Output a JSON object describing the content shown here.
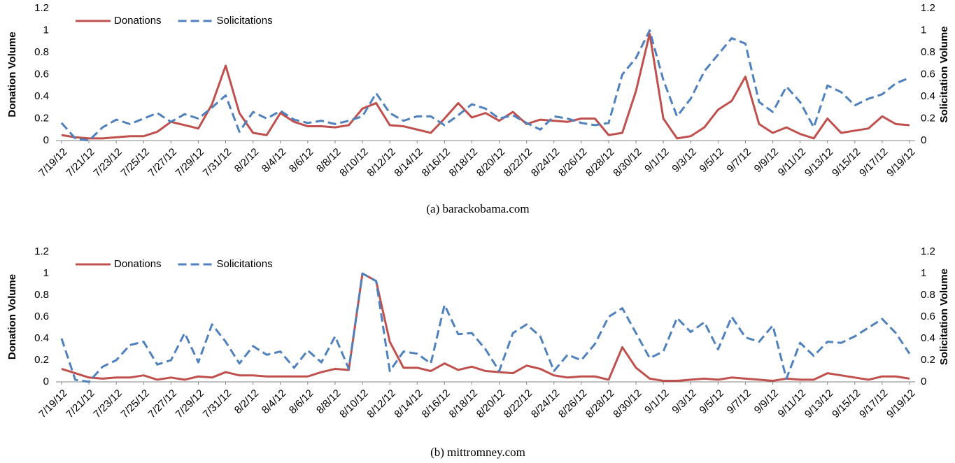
{
  "chart_data": [
    {
      "type": "line",
      "caption": "(a)  barackobama.com",
      "y_label": "Donation Volume",
      "y2_label": "Solicitation Volume",
      "legend": "upper left",
      "grid": false,
      "categories": [
        "7/19/12",
        null,
        "7/21/12",
        null,
        "7/23/12",
        null,
        "7/25/12",
        null,
        "7/27/12",
        null,
        "7/29/12",
        null,
        "7/31/12",
        null,
        "8/2/12",
        null,
        "8/4/12",
        null,
        "8/6/12",
        null,
        "8/8/12",
        null,
        "8/10/12",
        null,
        "8/12/12",
        null,
        "8/14/12",
        null,
        "8/16/12",
        null,
        "8/18/12",
        null,
        "8/20/12",
        null,
        "8/22/12",
        null,
        "8/24/12",
        null,
        "8/26/12",
        null,
        "8/28/12",
        null,
        "8/30/12",
        null,
        "9/1/12",
        null,
        "9/3/12",
        null,
        "9/5/12",
        null,
        "9/7/12",
        null,
        "9/9/12",
        null,
        "9/11/12",
        null,
        "9/13/12",
        null,
        "9/15/12",
        null,
        "9/17/12",
        null,
        "9/19/12"
      ],
      "ylim": [
        0,
        1.2
      ],
      "yticks": [
        0,
        0.2,
        0.4,
        0.6,
        0.8,
        1,
        1.2
      ],
      "y2lim": [
        0,
        1.2
      ],
      "y2ticks": [
        0,
        0.2,
        0.4,
        0.6,
        0.8,
        1,
        1.2
      ],
      "series": [
        {
          "name": "Donations",
          "color": "#c0504d",
          "style": "solid",
          "values": [
            0.05,
            0.03,
            0.02,
            0.02,
            0.03,
            0.04,
            0.04,
            0.08,
            0.17,
            0.14,
            0.11,
            0.33,
            0.68,
            0.25,
            0.07,
            0.05,
            0.25,
            0.17,
            0.13,
            0.13,
            0.12,
            0.14,
            0.29,
            0.34,
            0.14,
            0.13,
            0.1,
            0.07,
            0.2,
            0.34,
            0.21,
            0.25,
            0.18,
            0.26,
            0.15,
            0.19,
            0.18,
            0.17,
            0.2,
            0.2,
            0.05,
            0.07,
            0.45,
            0.97,
            0.2,
            0.02,
            0.04,
            0.12,
            0.28,
            0.36,
            0.58,
            0.15,
            0.07,
            0.12,
            0.06,
            0.02,
            0.2,
            0.07,
            0.09,
            0.11,
            0.22,
            0.15,
            0.14
          ]
        },
        {
          "name": "Solicitations",
          "color": "#4f81bd",
          "style": "dashed",
          "axis": "y2",
          "values": [
            0.16,
            0.02,
            0.0,
            0.12,
            0.19,
            0.15,
            0.2,
            0.25,
            0.17,
            0.24,
            0.2,
            0.3,
            0.41,
            0.08,
            0.26,
            0.2,
            0.27,
            0.19,
            0.16,
            0.18,
            0.15,
            0.18,
            0.22,
            0.43,
            0.25,
            0.18,
            0.22,
            0.22,
            0.14,
            0.23,
            0.33,
            0.29,
            0.2,
            0.23,
            0.16,
            0.1,
            0.22,
            0.2,
            0.16,
            0.14,
            0.16,
            0.6,
            0.75,
            1.0,
            0.55,
            0.22,
            0.38,
            0.63,
            0.78,
            0.93,
            0.88,
            0.35,
            0.26,
            0.49,
            0.35,
            0.12,
            0.5,
            0.44,
            0.32,
            0.38,
            0.42,
            0.52,
            0.57
          ]
        }
      ]
    },
    {
      "type": "line",
      "caption": "(b)  mittromney.com",
      "y_label": "Donation Volume",
      "y2_label": "Solicitation Volume",
      "legend": "upper left",
      "grid": false,
      "categories": [
        "7/19/12",
        null,
        "7/21/12",
        null,
        "7/23/12",
        null,
        "7/25/12",
        null,
        "7/27/12",
        null,
        "7/29/12",
        null,
        "7/31/12",
        null,
        "8/2/12",
        null,
        "8/4/12",
        null,
        "8/6/12",
        null,
        "8/8/12",
        null,
        "8/10/12",
        null,
        "8/12/12",
        null,
        "8/14/12",
        null,
        "8/16/12",
        null,
        "8/18/12",
        null,
        "8/20/12",
        null,
        "8/22/12",
        null,
        "8/24/12",
        null,
        "8/26/12",
        null,
        "8/28/12",
        null,
        "8/30/12",
        null,
        "9/1/12",
        null,
        "9/3/12",
        null,
        "9/5/12",
        null,
        "9/7/12",
        null,
        "9/9/12",
        null,
        "9/11/12",
        null,
        "9/13/12",
        null,
        "9/15/12",
        null,
        "9/17/12",
        null,
        "9/19/12"
      ],
      "ylim": [
        0,
        1.2
      ],
      "yticks": [
        0,
        0.2,
        0.4,
        0.6,
        0.8,
        1,
        1.2
      ],
      "y2lim": [
        0,
        1.2
      ],
      "y2ticks": [
        0,
        0.2,
        0.4,
        0.6,
        0.8,
        1,
        1.2
      ],
      "series": [
        {
          "name": "Donations",
          "color": "#c0504d",
          "style": "solid",
          "values": [
            0.12,
            0.08,
            0.04,
            0.03,
            0.04,
            0.04,
            0.06,
            0.02,
            0.04,
            0.02,
            0.05,
            0.04,
            0.09,
            0.06,
            0.06,
            0.05,
            0.05,
            0.05,
            0.05,
            0.09,
            0.12,
            0.11,
            1.0,
            0.93,
            0.37,
            0.13,
            0.13,
            0.1,
            0.17,
            0.11,
            0.14,
            0.1,
            0.09,
            0.08,
            0.15,
            0.12,
            0.06,
            0.04,
            0.05,
            0.05,
            0.02,
            0.32,
            0.13,
            0.03,
            0.01,
            0.01,
            0.02,
            0.03,
            0.02,
            0.04,
            0.03,
            0.02,
            0.01,
            0.03,
            0.02,
            0.02,
            0.08,
            0.06,
            0.04,
            0.02,
            0.05,
            0.05,
            0.03
          ]
        },
        {
          "name": "Solicitations",
          "color": "#4f81bd",
          "style": "dashed",
          "axis": "y2",
          "values": [
            0.4,
            0.02,
            0.0,
            0.14,
            0.2,
            0.34,
            0.37,
            0.16,
            0.2,
            0.45,
            0.18,
            0.53,
            0.37,
            0.17,
            0.33,
            0.25,
            0.28,
            0.13,
            0.29,
            0.18,
            0.42,
            0.12,
            1.0,
            0.93,
            0.1,
            0.28,
            0.26,
            0.17,
            0.71,
            0.44,
            0.45,
            0.3,
            0.1,
            0.45,
            0.53,
            0.42,
            0.1,
            0.25,
            0.2,
            0.35,
            0.6,
            0.68,
            0.45,
            0.22,
            0.28,
            0.59,
            0.46,
            0.55,
            0.3,
            0.6,
            0.41,
            0.37,
            0.52,
            0.03,
            0.36,
            0.24,
            0.37,
            0.36,
            0.42,
            0.5,
            0.58,
            0.45,
            0.26
          ]
        }
      ]
    }
  ]
}
